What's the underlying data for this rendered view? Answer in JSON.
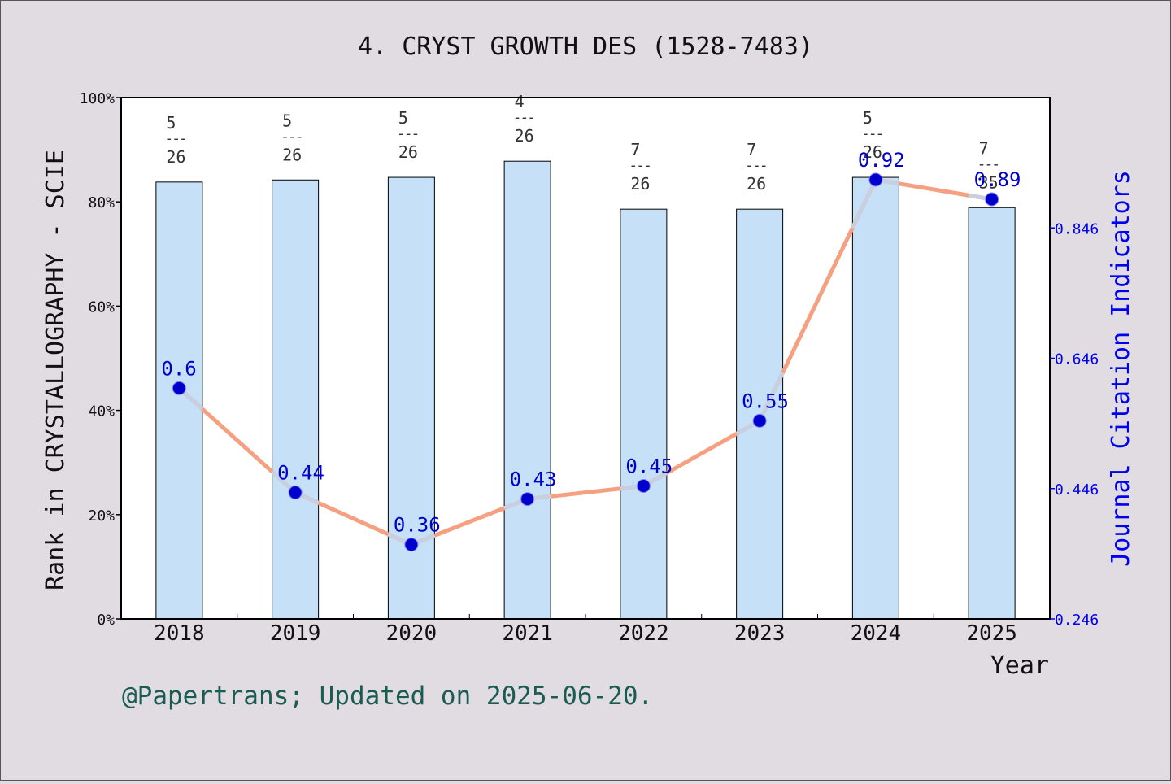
{
  "chart_data": {
    "type": "bar+line",
    "title": "4. CRYST GROWTH DES (1528-7483)",
    "xlabel": "Year",
    "ylabel_left": "Rank in CRYSTALLOGRAPHY - SCIE",
    "ylabel_right": "Journal Citation Indicators",
    "footer": "@Papertrans; Updated on 2025-06-20.",
    "categories": [
      "2018",
      "2019",
      "2020",
      "2021",
      "2022",
      "2023",
      "2024",
      "2025"
    ],
    "left_axis": {
      "min": 0,
      "max": 100,
      "ticks": [
        0,
        20,
        40,
        60,
        80,
        100
      ],
      "tick_labels": [
        "0%",
        "20%",
        "40%",
        "60%",
        "80%",
        "100%"
      ]
    },
    "right_axis": {
      "min": 0.246,
      "max": 1.046,
      "ticks": [
        0.246,
        0.446,
        0.646,
        0.846
      ],
      "tick_labels": [
        "0.246",
        "0.446",
        "0.646",
        "0.846"
      ]
    },
    "bars": {
      "values": [
        83.8,
        84.2,
        84.7,
        87.8,
        78.6,
        78.6,
        84.7,
        78.9
      ],
      "rank_num": [
        "5",
        "5",
        "5",
        "4",
        "7",
        "7",
        "5",
        "7"
      ],
      "rank_den": [
        "26",
        "26",
        "26",
        "26",
        "26",
        "26",
        "26",
        "35"
      ],
      "rank_sep": "---",
      "color": "#c5e0f7"
    },
    "line": {
      "values": [
        0.6,
        0.44,
        0.36,
        0.43,
        0.45,
        0.55,
        0.92,
        0.89
      ],
      "labels": [
        "0.6",
        "0.44",
        "0.36",
        "0.43",
        "0.45",
        "0.55",
        "0.92",
        "0.89"
      ],
      "color": "#f5a080",
      "point_color": "#0000cc",
      "label_color": "#0000cc"
    },
    "colors": {
      "background": "#e0dce2",
      "right_axis": "#0000ee",
      "footer": "#1a5c52"
    }
  }
}
